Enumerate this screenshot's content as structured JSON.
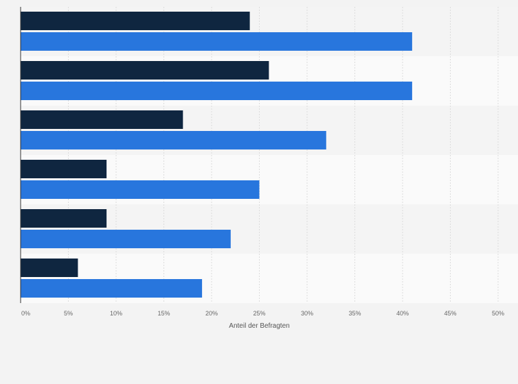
{
  "chart_data": {
    "type": "bar",
    "orientation": "horizontal",
    "title": "",
    "xlabel": "Anteil der Befragten",
    "ylabel": "",
    "xlim": [
      0,
      50
    ],
    "x_ticks": [
      0,
      5,
      10,
      15,
      20,
      25,
      30,
      35,
      40,
      45,
      50
    ],
    "x_tick_labels": [
      "0%",
      "5%",
      "10%",
      "15%",
      "20%",
      "25%",
      "30%",
      "35%",
      "40%",
      "45%",
      "50%"
    ],
    "grid": true,
    "legend": "none",
    "categories": [
      "",
      "",
      "",
      "",
      "",
      ""
    ],
    "series": [
      {
        "values": [
          24,
          26,
          17,
          9,
          9,
          6
        ],
        "color": "#0f2640"
      },
      {
        "values": [
          41,
          41,
          32,
          25,
          22,
          19
        ],
        "color": "#2876dd"
      }
    ]
  }
}
